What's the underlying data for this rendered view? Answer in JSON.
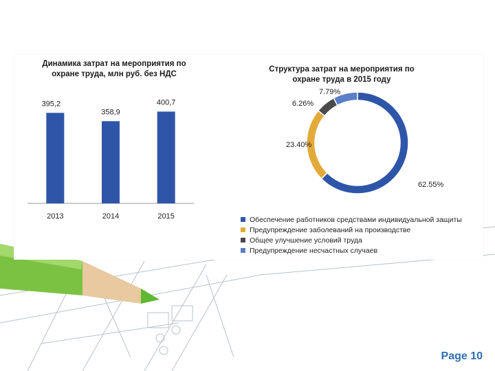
{
  "page": {
    "label": "Page 10"
  },
  "chart_data": [
    {
      "type": "bar",
      "title": "Динамика затрат  на мероприятия по охране труда, млн руб. без НДС",
      "title_lines": [
        "Динамика затрат  на мероприятия по",
        "охране труда, млн руб. без НДС"
      ],
      "categories": [
        "2013",
        "2014",
        "2015"
      ],
      "values": [
        395.2,
        358.9,
        400.7
      ],
      "value_labels": [
        "395,2",
        "358,9",
        "400,7"
      ],
      "ylim": [
        0,
        450
      ],
      "grid": false,
      "color": "#2e55a8"
    },
    {
      "type": "pie",
      "variant": "donut",
      "title": "Структура  затрат на мероприятия по охране труда в 2015 году",
      "title_lines": [
        "Структура  затрат на мероприятия по",
        "охране труда в 2015 году"
      ],
      "slices": [
        {
          "label": "Обеспечение работников средствами индивидуальной защиты",
          "value": 62.55,
          "value_label": "62.55%",
          "color": "#2e55a8"
        },
        {
          "label": "Предупреждение заболеваний на производстве",
          "value": 23.4,
          "value_label": "23.40%",
          "color": "#e2aa38"
        },
        {
          "label": "Общее улучшение условий труда",
          "value": 6.26,
          "value_label": "6.26%",
          "color": "#4a4a4a"
        },
        {
          "label": "Предупреждение несчастных случаев",
          "value": 7.79,
          "value_label": "7.79%",
          "color": "#5b7fc6"
        }
      ],
      "legend_position": "bottom"
    }
  ]
}
